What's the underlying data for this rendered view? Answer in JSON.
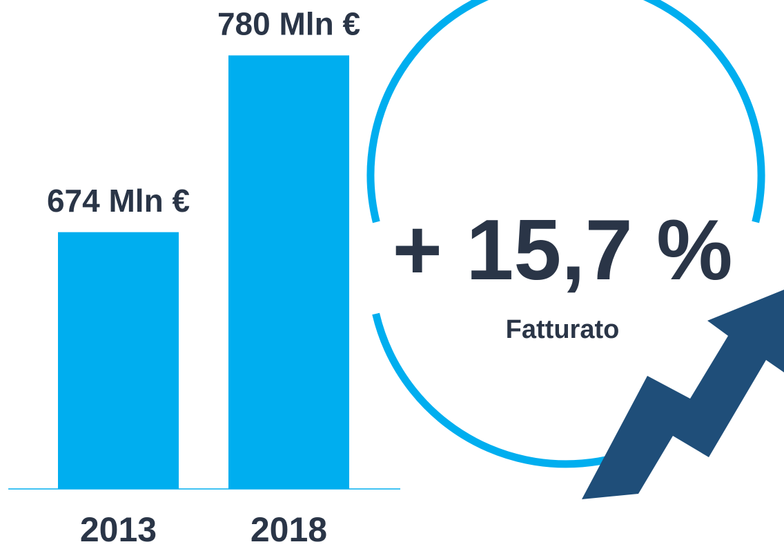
{
  "chart_data": {
    "type": "bar",
    "categories": [
      "2013",
      "2018"
    ],
    "values": [
      674,
      780
    ],
    "value_labels": [
      "674 Mln €",
      "780 Mln €"
    ],
    "color": "#00aeef",
    "ylim": [
      520,
      800
    ],
    "annotations": [
      "+ 15,7 %",
      "Fatturato"
    ]
  }
}
